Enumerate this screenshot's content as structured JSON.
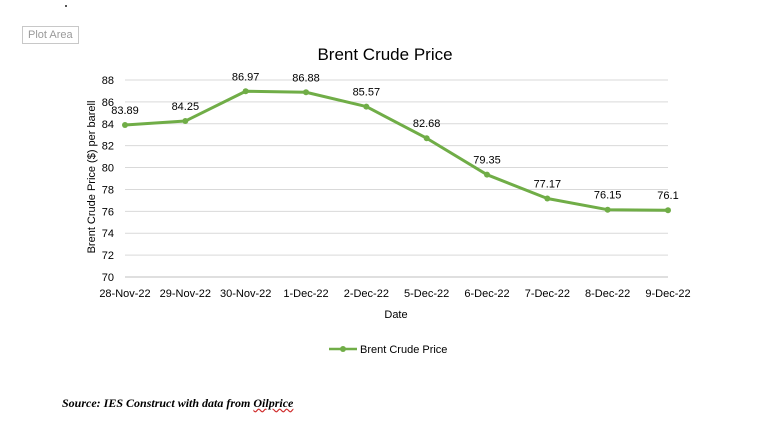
{
  "plot_area_tag": "Plot Area",
  "source": {
    "prefix": "Source: IES Construct with data from ",
    "link": "Oilprice"
  },
  "chart_data": {
    "type": "line",
    "title": "Brent Crude Price",
    "xlabel": "Date",
    "ylabel": "Brent Crude Price ($) per barell",
    "ylim": [
      70,
      88
    ],
    "yticks": [
      70,
      72,
      74,
      76,
      78,
      80,
      82,
      84,
      86,
      88
    ],
    "grid": true,
    "legend": "bottom",
    "categories": [
      "28-Nov-22",
      "29-Nov-22",
      "30-Nov-22",
      "1-Dec-22",
      "2-Dec-22",
      "5-Dec-22",
      "6-Dec-22",
      "7-Dec-22",
      "8-Dec-22",
      "9-Dec-22"
    ],
    "series": [
      {
        "name": "Brent Crude Price",
        "color": "#70ad47",
        "values": [
          83.89,
          84.25,
          86.97,
          86.88,
          85.57,
          82.68,
          79.35,
          77.17,
          76.15,
          76.1
        ],
        "data_labels": [
          "83.89",
          "84.25",
          "86.97",
          "86.88",
          "85.57",
          "82.68",
          "79.35",
          "77.17",
          "76.15",
          "76.1"
        ]
      }
    ]
  }
}
